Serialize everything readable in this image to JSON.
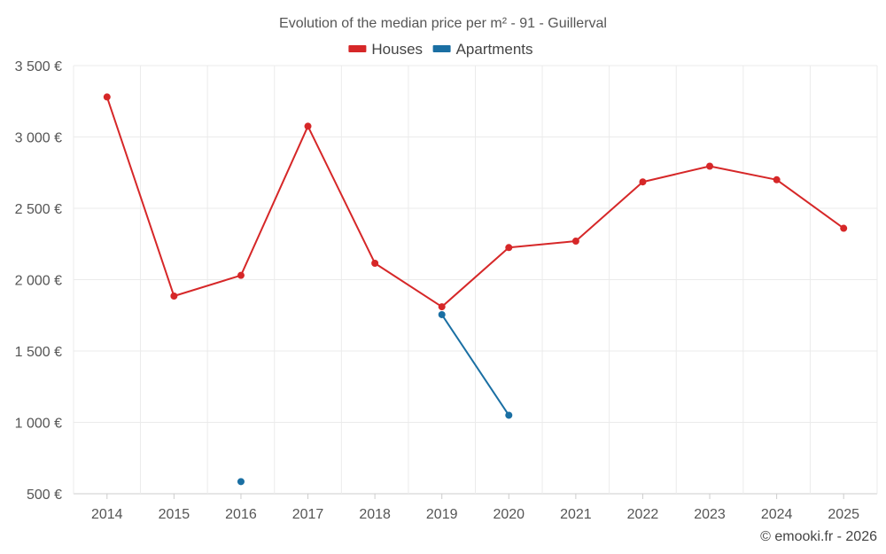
{
  "chart_data": {
    "type": "line",
    "title": "Evolution of the median price per m² - 91 - Guillerval",
    "categories": [
      "2014",
      "2015",
      "2016",
      "2017",
      "2018",
      "2019",
      "2020",
      "2021",
      "2022",
      "2023",
      "2024",
      "2025"
    ],
    "series": [
      {
        "name": "Houses",
        "color": "#d62728",
        "values": [
          3280,
          1885,
          2030,
          3075,
          2115,
          1810,
          2225,
          2270,
          2685,
          2795,
          2700,
          2360
        ]
      },
      {
        "name": "Apartments",
        "color": "#1a6fa3",
        "values": [
          null,
          null,
          585,
          null,
          null,
          1755,
          1050,
          null,
          null,
          null,
          null,
          null
        ]
      }
    ],
    "y_ticks": [
      {
        "value": 500,
        "label": "500 €"
      },
      {
        "value": 1000,
        "label": "1 000 €"
      },
      {
        "value": 1500,
        "label": "1 500 €"
      },
      {
        "value": 2000,
        "label": "2 000 €"
      },
      {
        "value": 2500,
        "label": "2 500 €"
      },
      {
        "value": 3000,
        "label": "3 000 €"
      },
      {
        "value": 3500,
        "label": "3 500 €"
      }
    ],
    "ylim": [
      500,
      3500
    ],
    "xlabel": "",
    "ylabel": "",
    "grid": true,
    "legend_position": "top-center"
  },
  "credit": "© emooki.fr - 2026"
}
